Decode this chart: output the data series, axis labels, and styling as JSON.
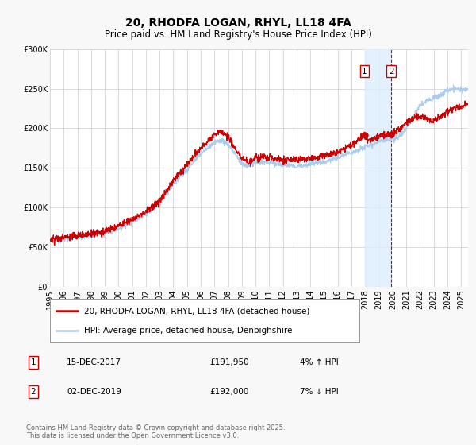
{
  "title": "20, RHODFA LOGAN, RHYL, LL18 4FA",
  "subtitle": "Price paid vs. HM Land Registry's House Price Index (HPI)",
  "ylim": [
    0,
    300000
  ],
  "xlim_start": 1995.0,
  "xlim_end": 2025.5,
  "yticks": [
    0,
    50000,
    100000,
    150000,
    200000,
    250000,
    300000
  ],
  "ytick_labels": [
    "£0",
    "£50K",
    "£100K",
    "£150K",
    "£200K",
    "£250K",
    "£300K"
  ],
  "xtick_years": [
    1995,
    1996,
    1997,
    1998,
    1999,
    2000,
    2001,
    2002,
    2003,
    2004,
    2005,
    2006,
    2007,
    2008,
    2009,
    2010,
    2011,
    2012,
    2013,
    2014,
    2015,
    2016,
    2017,
    2018,
    2019,
    2020,
    2021,
    2022,
    2023,
    2024,
    2025
  ],
  "background_color": "#f8f8f8",
  "plot_bg_color": "#ffffff",
  "grid_color": "#cccccc",
  "red_line_color": "#cc0000",
  "blue_line_color": "#aaccee",
  "shade_color": "#ddeeff",
  "dashed_line_color": "#cc0000",
  "marker1_x": 2017.958,
  "marker1_y": 191950,
  "marker2_x": 2019.917,
  "marker2_y": 192000,
  "annotation1_label": "1",
  "annotation2_label": "2",
  "shade_x_start": 2017.958,
  "shade_x_end": 2019.917,
  "legend_entry1": "20, RHODFA LOGAN, RHYL, LL18 4FA (detached house)",
  "legend_entry2": "HPI: Average price, detached house, Denbighshire",
  "table_row1": [
    "1",
    "15-DEC-2017",
    "£191,950",
    "4% ↑ HPI"
  ],
  "table_row2": [
    "2",
    "02-DEC-2019",
    "£192,000",
    "7% ↓ HPI"
  ],
  "footer": "Contains HM Land Registry data © Crown copyright and database right 2025.\nThis data is licensed under the Open Government Licence v3.0.",
  "title_fontsize": 10,
  "subtitle_fontsize": 8.5,
  "tick_fontsize": 7,
  "legend_fontsize": 7.5,
  "table_fontsize": 7.5,
  "footer_fontsize": 6
}
